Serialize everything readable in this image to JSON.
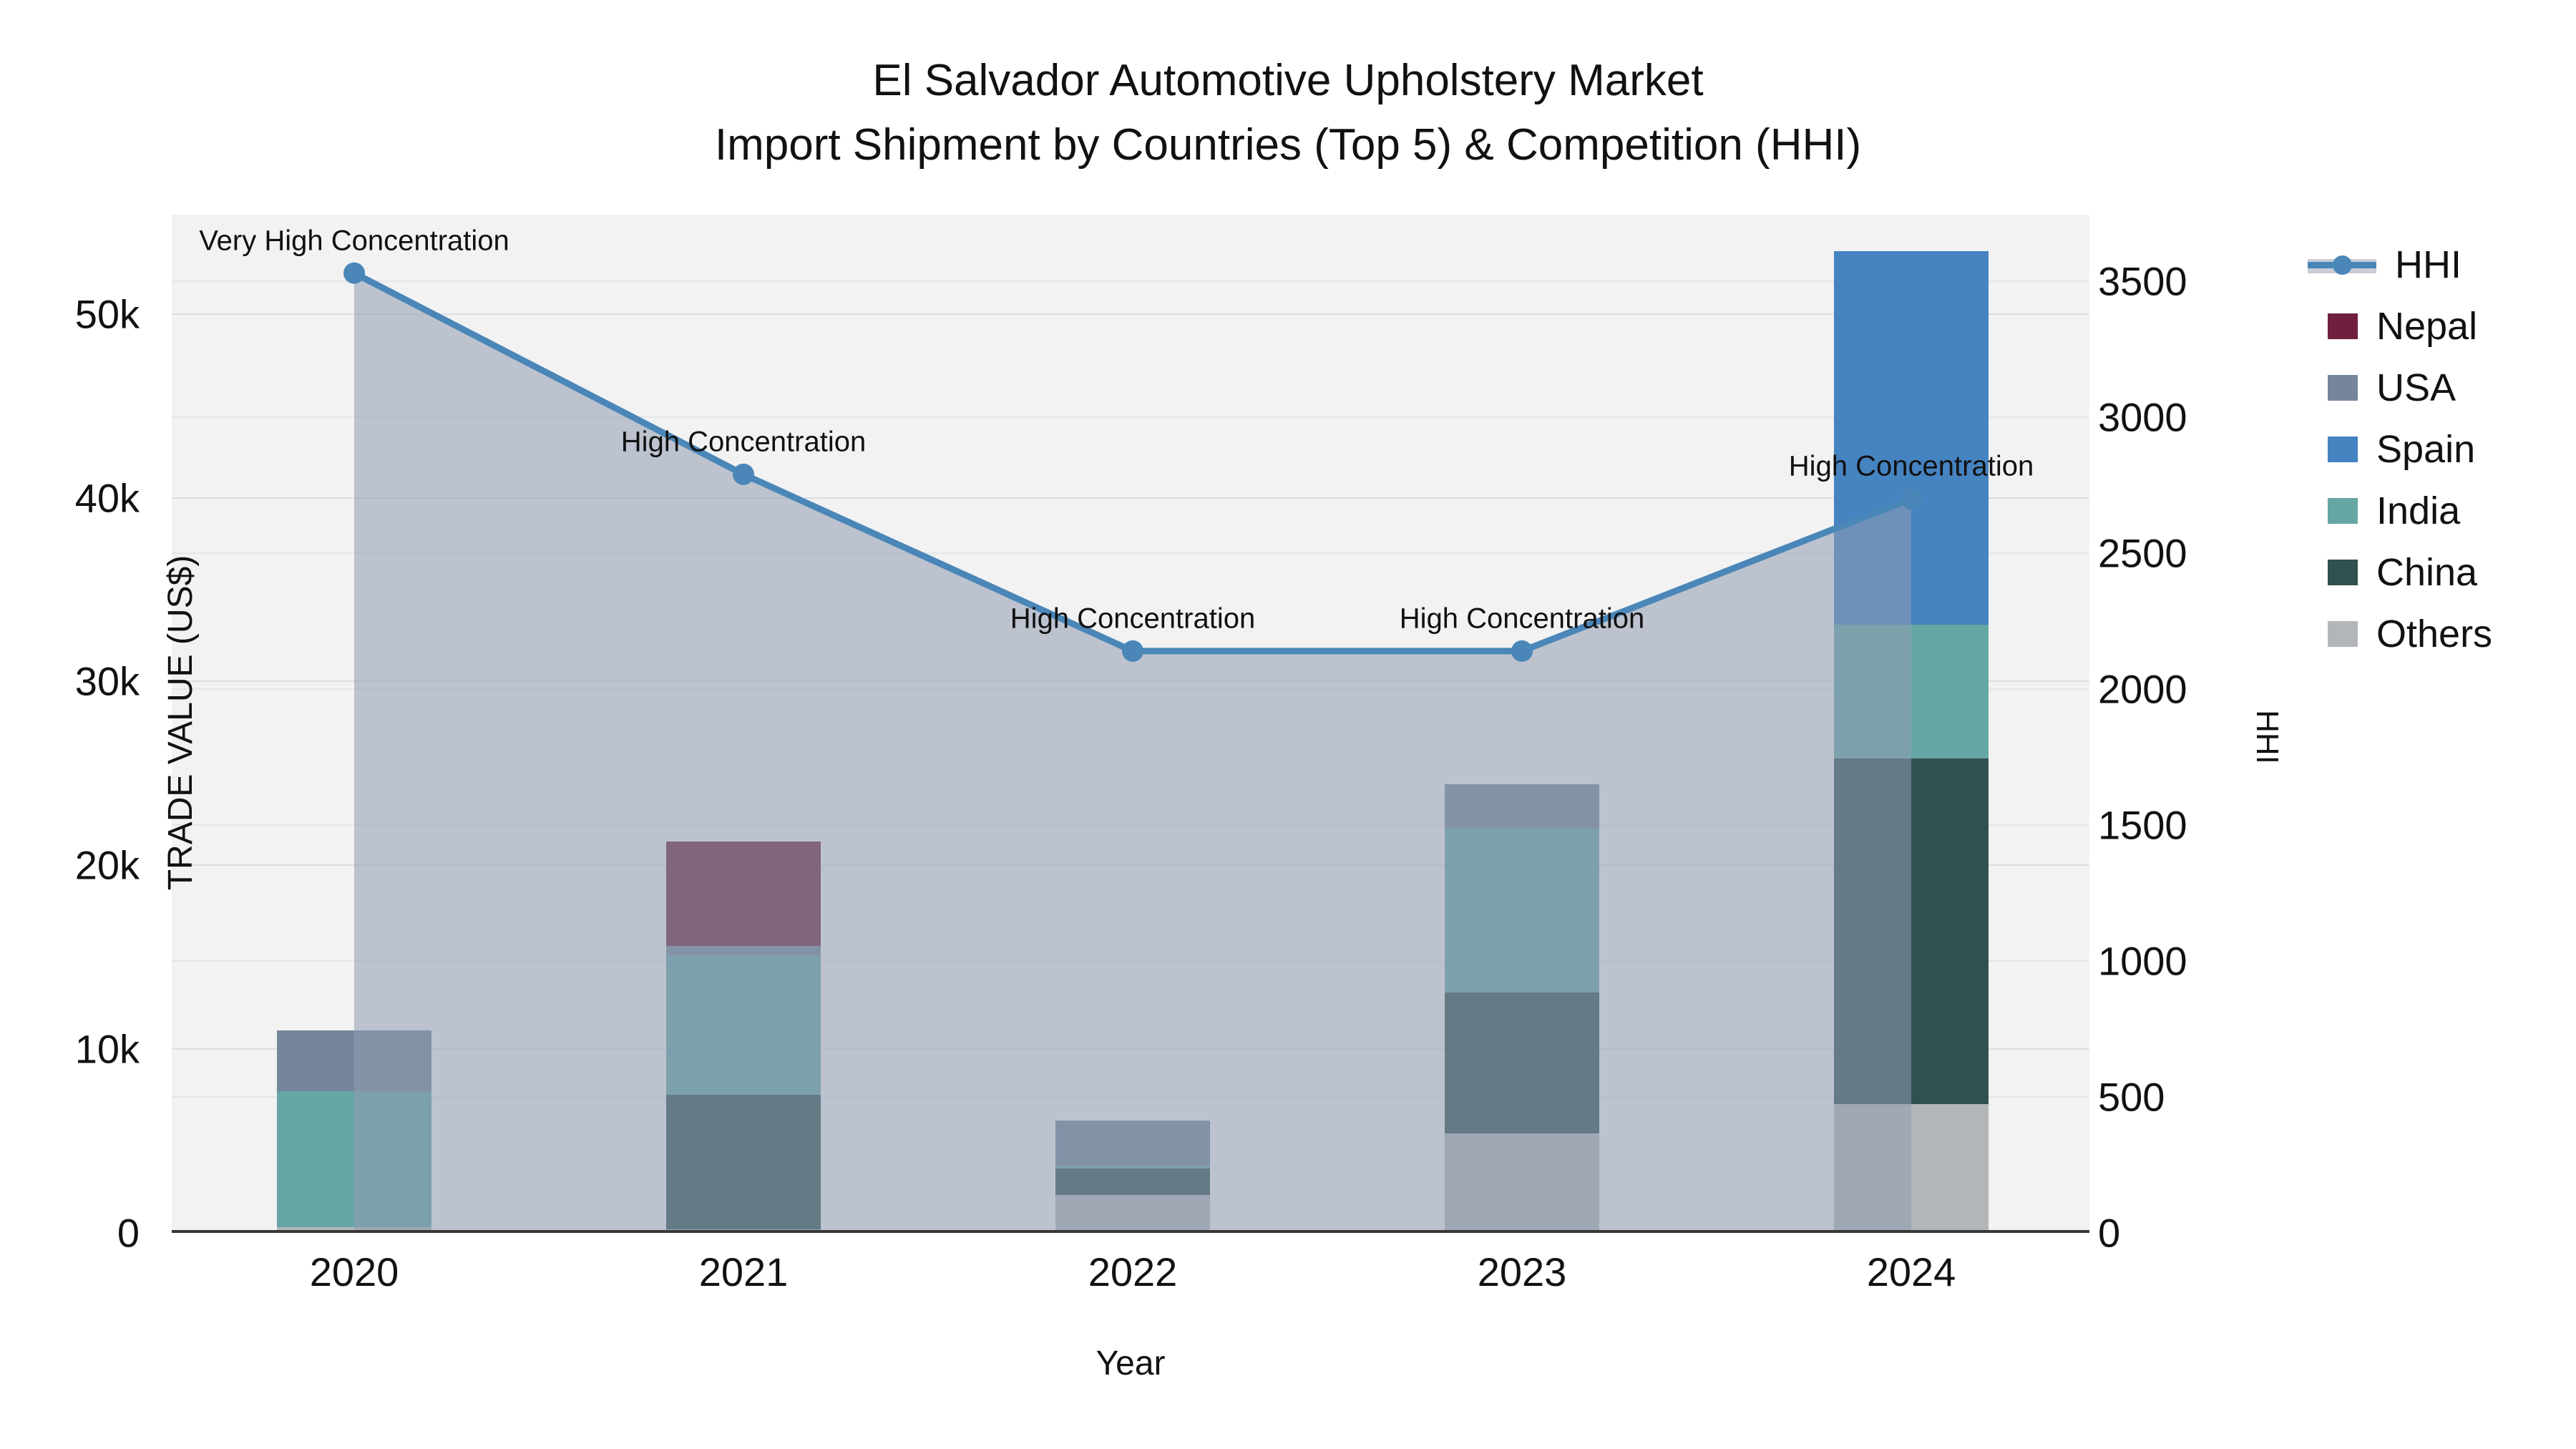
{
  "title": {
    "line1": "El Salvador Automotive Upholstery Market",
    "line2": "Import Shipment by Countries (Top 5) & Competition (HHI)"
  },
  "axes": {
    "left": {
      "title": "TRADE VALUE (US$)",
      "ticks": [
        {
          "label": "0",
          "value": 0
        },
        {
          "label": "10k",
          "value": 10000
        },
        {
          "label": "20k",
          "value": 20000
        },
        {
          "label": "30k",
          "value": 30000
        },
        {
          "label": "40k",
          "value": 40000
        },
        {
          "label": "50k",
          "value": 50000
        }
      ]
    },
    "right": {
      "title": "HHI",
      "ticks": [
        {
          "label": "0",
          "value": 0
        },
        {
          "label": "500",
          "value": 500
        },
        {
          "label": "1000",
          "value": 1000
        },
        {
          "label": "1500",
          "value": 1500
        },
        {
          "label": "2000",
          "value": 2000
        },
        {
          "label": "2500",
          "value": 2500
        },
        {
          "label": "3000",
          "value": 3000
        },
        {
          "label": "3500",
          "value": 3500
        }
      ]
    },
    "x": {
      "title": "Year",
      "categories": [
        "2020",
        "2021",
        "2022",
        "2023",
        "2024"
      ]
    }
  },
  "legend": {
    "items": [
      {
        "label": "HHI",
        "color": "#4a86b8",
        "type": "line"
      },
      {
        "label": "Nepal",
        "color": "#701f3f",
        "type": "box"
      },
      {
        "label": "USA",
        "color": "#75869c",
        "type": "box"
      },
      {
        "label": "Spain",
        "color": "#4583c1",
        "type": "box"
      },
      {
        "label": "India",
        "color": "#66a6a4",
        "type": "box"
      },
      {
        "label": "China",
        "color": "#30514e",
        "type": "box"
      },
      {
        "label": "Others",
        "color": "#b3b6b9",
        "type": "box"
      }
    ]
  },
  "chart_data": {
    "type": "bar+line",
    "title": "El Salvador Automotive Upholstery Market — Import Shipment by Countries (Top 5) & Competition (HHI)",
    "categories": [
      "2020",
      "2021",
      "2022",
      "2023",
      "2024"
    ],
    "stack_order_note": "series listed bottom-to-top of the stacked bars",
    "series": [
      {
        "name": "Others",
        "color": "#b3b6b9",
        "values": [
          300,
          200,
          2050,
          5400,
          7000
        ]
      },
      {
        "name": "China",
        "color": "#30514e",
        "values": [
          0,
          7300,
          1450,
          7700,
          18800
        ]
      },
      {
        "name": "India",
        "color": "#66a6a4",
        "values": [
          7400,
          7600,
          150,
          8900,
          7300
        ]
      },
      {
        "name": "USA",
        "color": "#75869c",
        "values": [
          3300,
          500,
          2450,
          2400,
          0
        ]
      },
      {
        "name": "Spain",
        "color": "#4583c1",
        "values": [
          0,
          0,
          0,
          0,
          20300
        ]
      },
      {
        "name": "Nepal",
        "color": "#701f3f",
        "values": [
          0,
          5700,
          0,
          0,
          0
        ]
      }
    ],
    "bar_totals": [
      11000,
      21300,
      6100,
      24400,
      53400
    ],
    "hhi": {
      "name": "HHI",
      "color": "#4a86b8",
      "area_fill": "rgba(143,156,178,0.55)",
      "values": [
        3530,
        2790,
        2140,
        2140,
        2700
      ]
    },
    "annotations": [
      {
        "year": "2020",
        "text": "Very High Concentration"
      },
      {
        "year": "2021",
        "text": "High Concentration"
      },
      {
        "year": "2022",
        "text": "High Concentration"
      },
      {
        "year": "2023",
        "text": "High Concentration"
      },
      {
        "year": "2024",
        "text": "High Concentration"
      }
    ],
    "xlabel": "Year",
    "ylabel_left": "TRADE VALUE (US$)",
    "ylabel_right": "HHI",
    "left_ylim": [
      0,
      55400
    ],
    "right_ylim": [
      0,
      3745
    ],
    "grid": true,
    "legend_position": "right"
  }
}
